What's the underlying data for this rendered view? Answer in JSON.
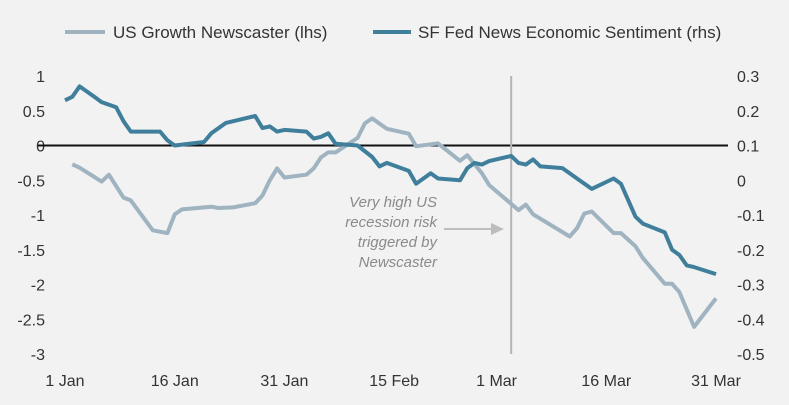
{
  "chart_data": {
    "type": "line",
    "title": "",
    "xlabel": "",
    "ylabel_left": "",
    "ylabel_right": "",
    "legend_position": "top",
    "grid": false,
    "x_ticks": [
      {
        "date": "01-01",
        "label": "1 Jan"
      },
      {
        "date": "01-16",
        "label": "16 Jan"
      },
      {
        "date": "01-31",
        "label": "31 Jan"
      },
      {
        "date": "02-15",
        "label": "15 Feb"
      },
      {
        "date": "03-01",
        "label": "1 Mar"
      },
      {
        "date": "03-16",
        "label": "16 Mar"
      },
      {
        "date": "03-31",
        "label": "31 Mar"
      }
    ],
    "x_range": [
      "01-01",
      "03-31"
    ],
    "y_left": {
      "range": [
        -3,
        1
      ],
      "ticks": [
        1,
        0.5,
        0,
        -0.5,
        -1,
        -1.5,
        -2,
        -2.5,
        -3
      ],
      "labels": [
        "1",
        "0.5",
        "0",
        "-0.5",
        "-1",
        "-1.5",
        "-2",
        "-2.5",
        "-3"
      ]
    },
    "y_right": {
      "range": [
        -0.5,
        0.3
      ],
      "ticks": [
        0.3,
        0.2,
        0.1,
        0,
        -0.1,
        -0.2,
        -0.3,
        -0.4,
        -0.5
      ],
      "labels": [
        "0.3",
        "0.2",
        "0.1",
        "0",
        "-0.1",
        "-0.2",
        "-0.3",
        "-0.4",
        "-0.5"
      ]
    },
    "zero_line": {
      "axis": "left",
      "value": 0
    },
    "series": [
      {
        "name": "US Growth Newscaster (lhs)",
        "axis": "left",
        "color": "#9fb3c0",
        "points": [
          [
            "01-02",
            -0.27
          ],
          [
            "01-03",
            -0.32
          ],
          [
            "01-06",
            -0.52
          ],
          [
            "01-07",
            -0.42
          ],
          [
            "01-09",
            -0.75
          ],
          [
            "01-10",
            -0.79
          ],
          [
            "01-13",
            -1.22
          ],
          [
            "01-15",
            -1.26
          ],
          [
            "01-16",
            -0.99
          ],
          [
            "01-17",
            -0.92
          ],
          [
            "01-21",
            -0.88
          ],
          [
            "01-22",
            -0.9
          ],
          [
            "01-24",
            -0.89
          ],
          [
            "01-27",
            -0.83
          ],
          [
            "01-28",
            -0.72
          ],
          [
            "01-29",
            -0.5
          ],
          [
            "01-30",
            -0.33
          ],
          [
            "01-31",
            -0.46
          ],
          [
            "02-03",
            -0.42
          ],
          [
            "02-04",
            -0.33
          ],
          [
            "02-05",
            -0.17
          ],
          [
            "02-06",
            -0.1
          ],
          [
            "02-07",
            -0.1
          ],
          [
            "02-09",
            0.04
          ],
          [
            "02-10",
            0.11
          ],
          [
            "02-11",
            0.32
          ],
          [
            "02-12",
            0.39
          ],
          [
            "02-14",
            0.24
          ],
          [
            "02-17",
            0.17
          ],
          [
            "02-18",
            -0.01
          ],
          [
            "02-21",
            0.03
          ],
          [
            "02-24",
            -0.22
          ],
          [
            "02-25",
            -0.14
          ],
          [
            "02-27",
            -0.4
          ],
          [
            "02-28",
            -0.57
          ],
          [
            "03-04",
            -0.93
          ],
          [
            "03-05",
            -0.85
          ],
          [
            "03-06",
            -0.99
          ],
          [
            "03-11",
            -1.31
          ],
          [
            "03-12",
            -1.19
          ],
          [
            "03-13",
            -0.98
          ],
          [
            "03-14",
            -0.95
          ],
          [
            "03-17",
            -1.26
          ],
          [
            "03-18",
            -1.26
          ],
          [
            "03-20",
            -1.45
          ],
          [
            "03-21",
            -1.62
          ],
          [
            "03-24",
            -1.99
          ],
          [
            "03-25",
            -1.99
          ],
          [
            "03-26",
            -2.11
          ],
          [
            "03-28",
            -2.61
          ],
          [
            "03-31",
            -2.2
          ]
        ]
      },
      {
        "name": "SF Fed News Economic Sentiment (rhs)",
        "axis": "right",
        "color": "#3f7f9c",
        "points": [
          [
            "01-01",
            0.23
          ],
          [
            "01-02",
            0.24
          ],
          [
            "01-03",
            0.27
          ],
          [
            "01-05",
            0.24
          ],
          [
            "01-06",
            0.225
          ],
          [
            "01-08",
            0.21
          ],
          [
            "01-09",
            0.17
          ],
          [
            "01-10",
            0.14
          ],
          [
            "01-14",
            0.14
          ],
          [
            "01-15",
            0.115
          ],
          [
            "01-16",
            0.1
          ],
          [
            "01-20",
            0.11
          ],
          [
            "01-21",
            0.135
          ],
          [
            "01-23",
            0.165
          ],
          [
            "01-24",
            0.17
          ],
          [
            "01-27",
            0.185
          ],
          [
            "01-28",
            0.15
          ],
          [
            "01-29",
            0.155
          ],
          [
            "01-30",
            0.14
          ],
          [
            "01-31",
            0.145
          ],
          [
            "02-03",
            0.14
          ],
          [
            "02-04",
            0.12
          ],
          [
            "02-05",
            0.125
          ],
          [
            "02-06",
            0.135
          ],
          [
            "02-07",
            0.105
          ],
          [
            "02-10",
            0.1
          ],
          [
            "02-12",
            0.067
          ],
          [
            "02-13",
            0.04
          ],
          [
            "02-14",
            0.05
          ],
          [
            "02-17",
            0.027
          ],
          [
            "02-18",
            -0.01
          ],
          [
            "02-20",
            0.02
          ],
          [
            "02-21",
            0.005
          ],
          [
            "02-24",
            0.0
          ],
          [
            "02-25",
            0.035
          ],
          [
            "02-26",
            0.05
          ],
          [
            "02-27",
            0.045
          ],
          [
            "02-28",
            0.055
          ],
          [
            "03-03",
            0.07
          ],
          [
            "03-04",
            0.05
          ],
          [
            "03-05",
            0.045
          ],
          [
            "03-06",
            0.06
          ],
          [
            "03-07",
            0.04
          ],
          [
            "03-10",
            0.035
          ],
          [
            "03-12",
            0.005
          ],
          [
            "03-14",
            -0.025
          ],
          [
            "03-17",
            0.005
          ],
          [
            "03-18",
            -0.01
          ],
          [
            "03-20",
            -0.105
          ],
          [
            "03-21",
            -0.125
          ],
          [
            "03-24",
            -0.15
          ],
          [
            "03-25",
            -0.2
          ],
          [
            "03-26",
            -0.215
          ],
          [
            "03-27",
            -0.245
          ],
          [
            "03-28",
            -0.25
          ],
          [
            "03-31",
            -0.27
          ]
        ]
      }
    ],
    "vertical_marker": {
      "date": "03-03",
      "color": "#b5b5b5"
    },
    "annotation": {
      "lines": [
        "Very high US",
        "recession risk",
        "triggered by",
        "Newscaster"
      ],
      "color": "#8a8a8a"
    }
  }
}
